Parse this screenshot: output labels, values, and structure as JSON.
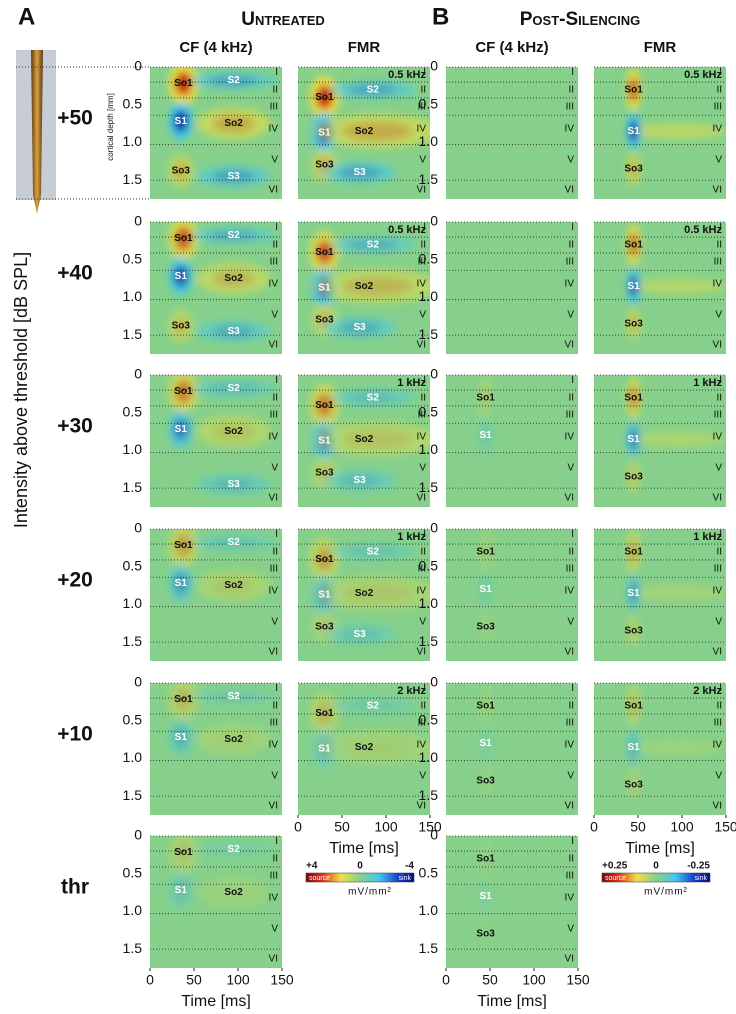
{
  "labels": {
    "a": "A",
    "b": "B"
  },
  "groups": [
    "Untreated",
    "Post-Silencing"
  ],
  "columns": [
    "CF (4 kHz)",
    "FMR",
    "CF (4 kHz)",
    "FMR"
  ],
  "rows": [
    "+50",
    "+40",
    "+30",
    "+20",
    "+10",
    "thr"
  ],
  "y_label": "Intensity above threshold  [dB SPL]",
  "depth_label": "cortical depth [mm]",
  "depth_ticks": [
    "0",
    "0.5",
    "1.0",
    "1.5"
  ],
  "layers": [
    "I",
    "II",
    "III",
    "IV",
    "V",
    "VI"
  ],
  "time_ticks": [
    "0",
    "50",
    "100",
    "150"
  ],
  "time_label": "Time [ms]",
  "colorbars": [
    {
      "max": "+4",
      "mid": "0",
      "min": "-4",
      "source": "source",
      "sink": "sink",
      "unit": "mV/mm²"
    },
    {
      "max": "+0.25",
      "mid": "0",
      "min": "-0.25",
      "source": "source",
      "sink": "sink",
      "unit": "mV/mm²"
    }
  ],
  "grid": [
    [
      {
        "components": [
          "So1",
          "S2",
          "S1",
          "So2",
          "So3",
          "S3"
        ]
      },
      {
        "freq": "0.5 kHz",
        "components": [
          "So1",
          "S2",
          "S1",
          "So2",
          "So3",
          "S3"
        ]
      },
      {
        "components": []
      },
      {
        "freq": "0.5 kHz",
        "components": [
          "So1",
          "S1",
          "So3"
        ]
      }
    ],
    [
      {
        "components": [
          "So1",
          "S2",
          "S1",
          "So2",
          "So3",
          "S3"
        ]
      },
      {
        "freq": "0.5 kHz",
        "components": [
          "So1",
          "S2",
          "S1",
          "So2",
          "So3",
          "S3"
        ]
      },
      {
        "components": []
      },
      {
        "freq": "0.5 kHz",
        "components": [
          "So1",
          "S1",
          "So3"
        ]
      }
    ],
    [
      {
        "components": [
          "So1",
          "S2",
          "S1",
          "So2",
          "S3"
        ]
      },
      {
        "freq": "1 kHz",
        "components": [
          "So1",
          "S2",
          "S1",
          "So2",
          "So3",
          "S3"
        ]
      },
      {
        "components": [
          "So1",
          "S1"
        ]
      },
      {
        "freq": "1 kHz",
        "components": [
          "So1",
          "S1",
          "So3"
        ]
      }
    ],
    [
      {
        "components": [
          "So1",
          "S2",
          "S1",
          "So2"
        ]
      },
      {
        "freq": "1 kHz",
        "components": [
          "So1",
          "S2",
          "S1",
          "So2",
          "So3",
          "S3"
        ]
      },
      {
        "components": [
          "So1",
          "S1",
          "So3"
        ]
      },
      {
        "freq": "1 kHz",
        "components": [
          "So1",
          "S1",
          "So3"
        ]
      }
    ],
    [
      {
        "components": [
          "So1",
          "S2",
          "S1",
          "So2"
        ]
      },
      {
        "freq": "2 kHz",
        "components": [
          "So1",
          "S2",
          "S1",
          "So2"
        ]
      },
      {
        "components": [
          "So1",
          "S1",
          "So3"
        ]
      },
      {
        "freq": "2 kHz",
        "components": [
          "So1",
          "S1",
          "So3"
        ]
      }
    ],
    [
      {
        "components": [
          "So1",
          "S2",
          "S1",
          "So2"
        ]
      },
      null,
      {
        "components": [
          "So1",
          "S1",
          "So3"
        ]
      },
      null
    ]
  ]
}
